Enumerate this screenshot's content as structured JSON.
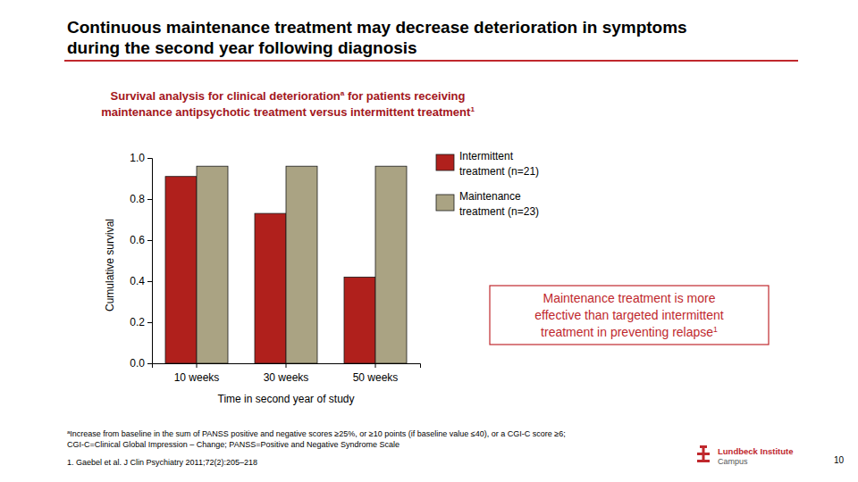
{
  "chart_data": {
    "type": "bar",
    "title": [
      "Continuous maintenance treatment may decrease deterioration in symptoms",
      "during the second year following diagnosis"
    ],
    "subtitle": [
      [
        "Survival analysis for clinical deterioration",
        "a",
        " for patients receiving"
      ],
      [
        "maintenance antipsychotic treatment versus intermittent treatment",
        "1"
      ]
    ],
    "categories": [
      "10 weeks",
      "30 weeks",
      "50 weeks"
    ],
    "series": [
      {
        "name": "Intermittent treatment (n=21)",
        "color": "#b0201c",
        "values": [
          0.91,
          0.73,
          0.42
        ]
      },
      {
        "name": "Maintenance treatment (n=23)",
        "color": "#aaa383",
        "values": [
          0.96,
          0.96,
          0.96
        ]
      }
    ],
    "ylabel": "Cumulative survival",
    "xlabel": "Time in second year of study",
    "ylim": [
      0,
      1
    ],
    "yticks": [
      {
        "value": 0,
        "label": "0.0"
      },
      0.2,
      0.4,
      0.6,
      0.8,
      {
        "value": 1,
        "label": "1.0"
      }
    ],
    "grid": false,
    "legend": "upper right",
    "annotation": [
      [
        "Maintenance treatment is more"
      ],
      [
        "effective than targeted intermittent"
      ],
      [
        "treatment in preventing relapse",
        "1"
      ]
    ]
  },
  "footnote": {
    "mark": "a",
    "lines": [
      "Increase from baseline in the sum of PANSS positive and negative scores ≥25%, or ≥10 points (if baseline value ≤40), or a CGI-C score ≥6;",
      "CGI-C=Clinical Global Impression – Change; PANSS=Positive and Negative Syndrome Scale"
    ]
  },
  "reference": "1. Gaebel et al. J Clin Psychiatry 2011;72(2):205–218",
  "logo": [
    "Lundbeck Institute",
    "Campus"
  ],
  "page_number": "10"
}
